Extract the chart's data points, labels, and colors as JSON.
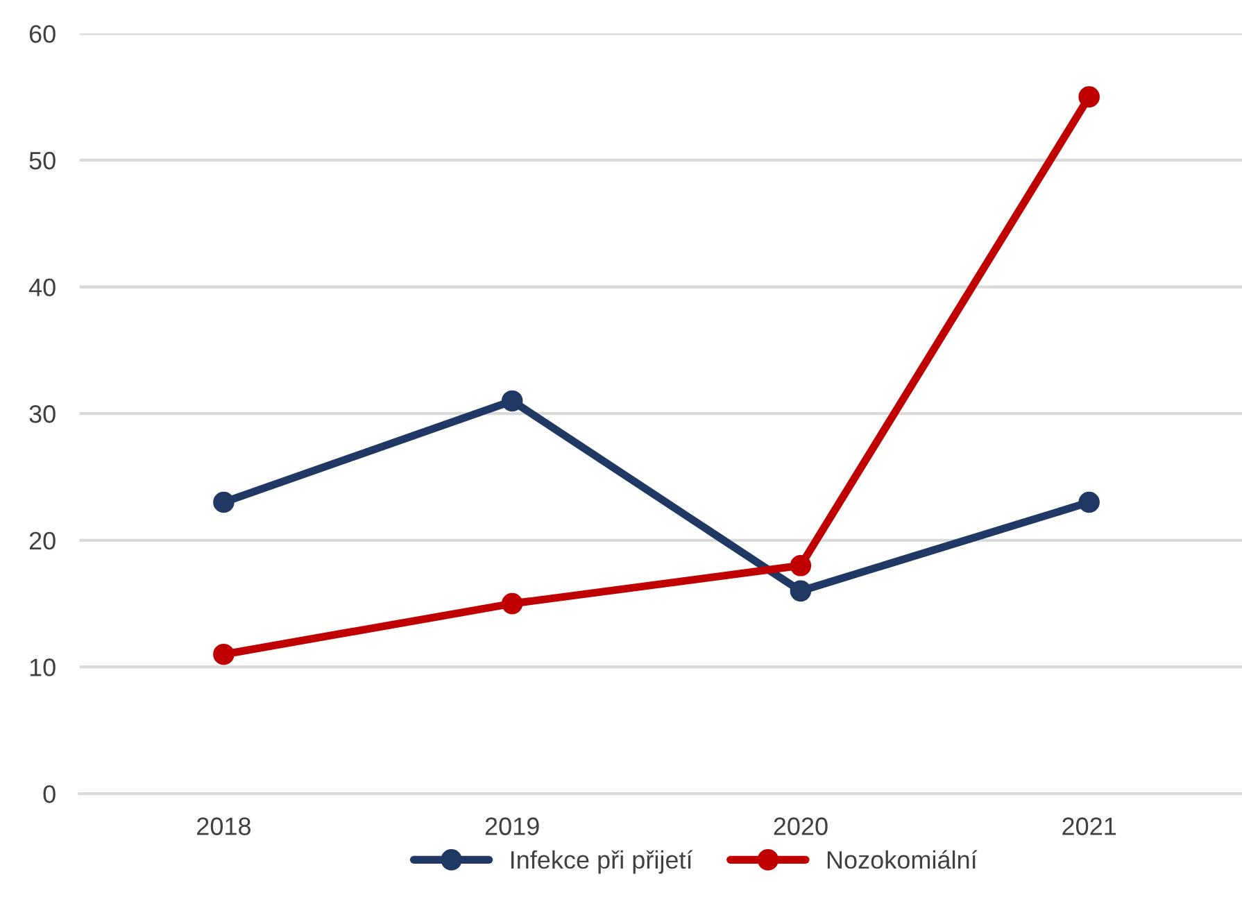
{
  "chart_data": {
    "type": "line",
    "categories": [
      "2018",
      "2019",
      "2020",
      "2021"
    ],
    "series": [
      {
        "name": "Infekce při přijetí",
        "color": "#1f3864",
        "values": [
          23,
          31,
          16,
          23
        ]
      },
      {
        "name": "Nozokomiální",
        "color": "#c00000",
        "values": [
          11,
          15,
          18,
          55
        ]
      }
    ],
    "ylim": [
      0,
      60
    ],
    "yticks": [
      0,
      10,
      20,
      30,
      40,
      50,
      60
    ],
    "grid": "y",
    "legend": "bottom",
    "marker": "circle",
    "line_style": "solid"
  }
}
